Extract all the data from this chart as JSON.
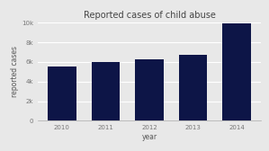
{
  "title": "Reported cases of child abuse",
  "xlabel": "year",
  "ylabel": "reported cases",
  "categories": [
    "2010",
    "2011",
    "2012",
    "2013",
    "2014"
  ],
  "values": [
    5500,
    6000,
    6300,
    6700,
    9900
  ],
  "bar_color": "#0d1547",
  "background_color": "#e8e8e8",
  "plot_bg_color": "#e8e8e8",
  "ylim": [
    0,
    10000
  ],
  "yticks": [
    0,
    2000,
    4000,
    6000,
    8000,
    10000
  ],
  "ytick_labels": [
    "0",
    "2k",
    "4k",
    "6k",
    "8k",
    "10k"
  ],
  "title_fontsize": 7,
  "axis_label_fontsize": 5.5,
  "tick_fontsize": 5
}
